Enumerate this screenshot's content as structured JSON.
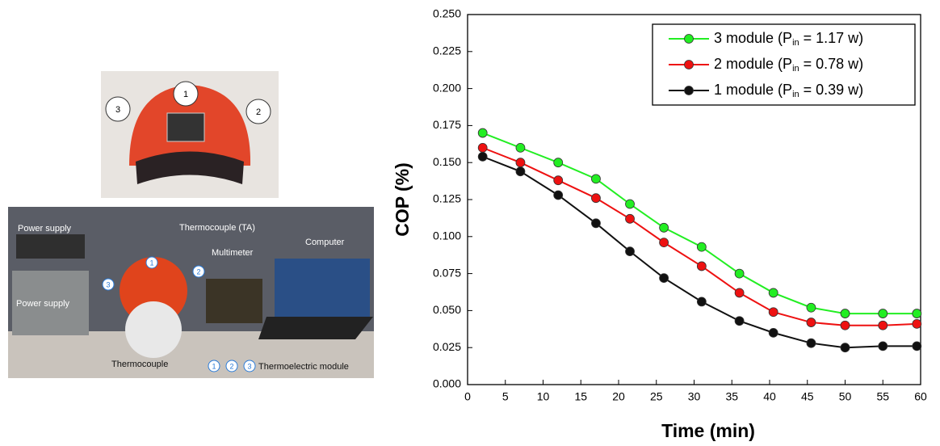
{
  "photos": {
    "helmet_labels": [
      "1",
      "3",
      "2"
    ],
    "setup_labels": {
      "power_supply_top": "Power supply",
      "thermocouple_ta": "Thermocouple (TA)",
      "multimeter": "Multimeter",
      "computer": "Computer",
      "power_supply_bottom": "Power supply",
      "thermocouple": "Thermocouple",
      "module_1": "1",
      "module_2": "2",
      "module_3": "3",
      "legend_1": "1",
      "legend_2": "2",
      "legend_3": "3",
      "thermoelectric_module": "Thermoelectric module"
    }
  },
  "chart_data": {
    "type": "line",
    "x_label": "Time (min)",
    "y_label": "COP (%)",
    "xlim": [
      0,
      60
    ],
    "xticks": [
      0,
      5,
      10,
      15,
      20,
      25,
      30,
      35,
      40,
      45,
      50,
      55,
      60
    ],
    "ylim": [
      0,
      0.25
    ],
    "yticks": [
      {
        "value": 0,
        "label": "0.000"
      },
      {
        "value": 0.025,
        "label": "0.025"
      },
      {
        "value": 0.05,
        "label": "0.050"
      },
      {
        "value": 0.075,
        "label": "0.075"
      },
      {
        "value": 0.1,
        "label": "0.100"
      },
      {
        "value": 0.125,
        "label": "0.125"
      },
      {
        "value": 0.15,
        "label": "0.150"
      },
      {
        "value": 0.175,
        "label": "0.175"
      },
      {
        "value": 0.2,
        "label": "0.200"
      },
      {
        "value": 0.225,
        "label": "0.225"
      },
      {
        "value": 0.25,
        "label": "0.250"
      }
    ],
    "legend": "upper right",
    "x": [
      2,
      7,
      12,
      17,
      21.5,
      26,
      31,
      36,
      40.5,
      45.5,
      50,
      55,
      59.5
    ],
    "series": [
      {
        "name": "3 module (Pin = 1.17 w)",
        "color": "#22ee22",
        "values": [
          0.17,
          0.16,
          0.15,
          0.139,
          0.122,
          0.106,
          0.093,
          0.075,
          0.062,
          0.052,
          0.048,
          0.048,
          0.048
        ]
      },
      {
        "name": "2 module (Pin = 0.78 w)",
        "color": "#ee1111",
        "values": [
          0.16,
          0.15,
          0.138,
          0.126,
          0.112,
          0.096,
          0.08,
          0.062,
          0.049,
          0.042,
          0.04,
          0.04,
          0.041
        ]
      },
      {
        "name": "1 module (Pin = 0.39 w)",
        "color": "#111111",
        "values": [
          0.154,
          0.144,
          0.128,
          0.109,
          0.09,
          0.072,
          0.056,
          0.043,
          0.035,
          0.028,
          0.025,
          0.026,
          0.026
        ]
      }
    ]
  }
}
